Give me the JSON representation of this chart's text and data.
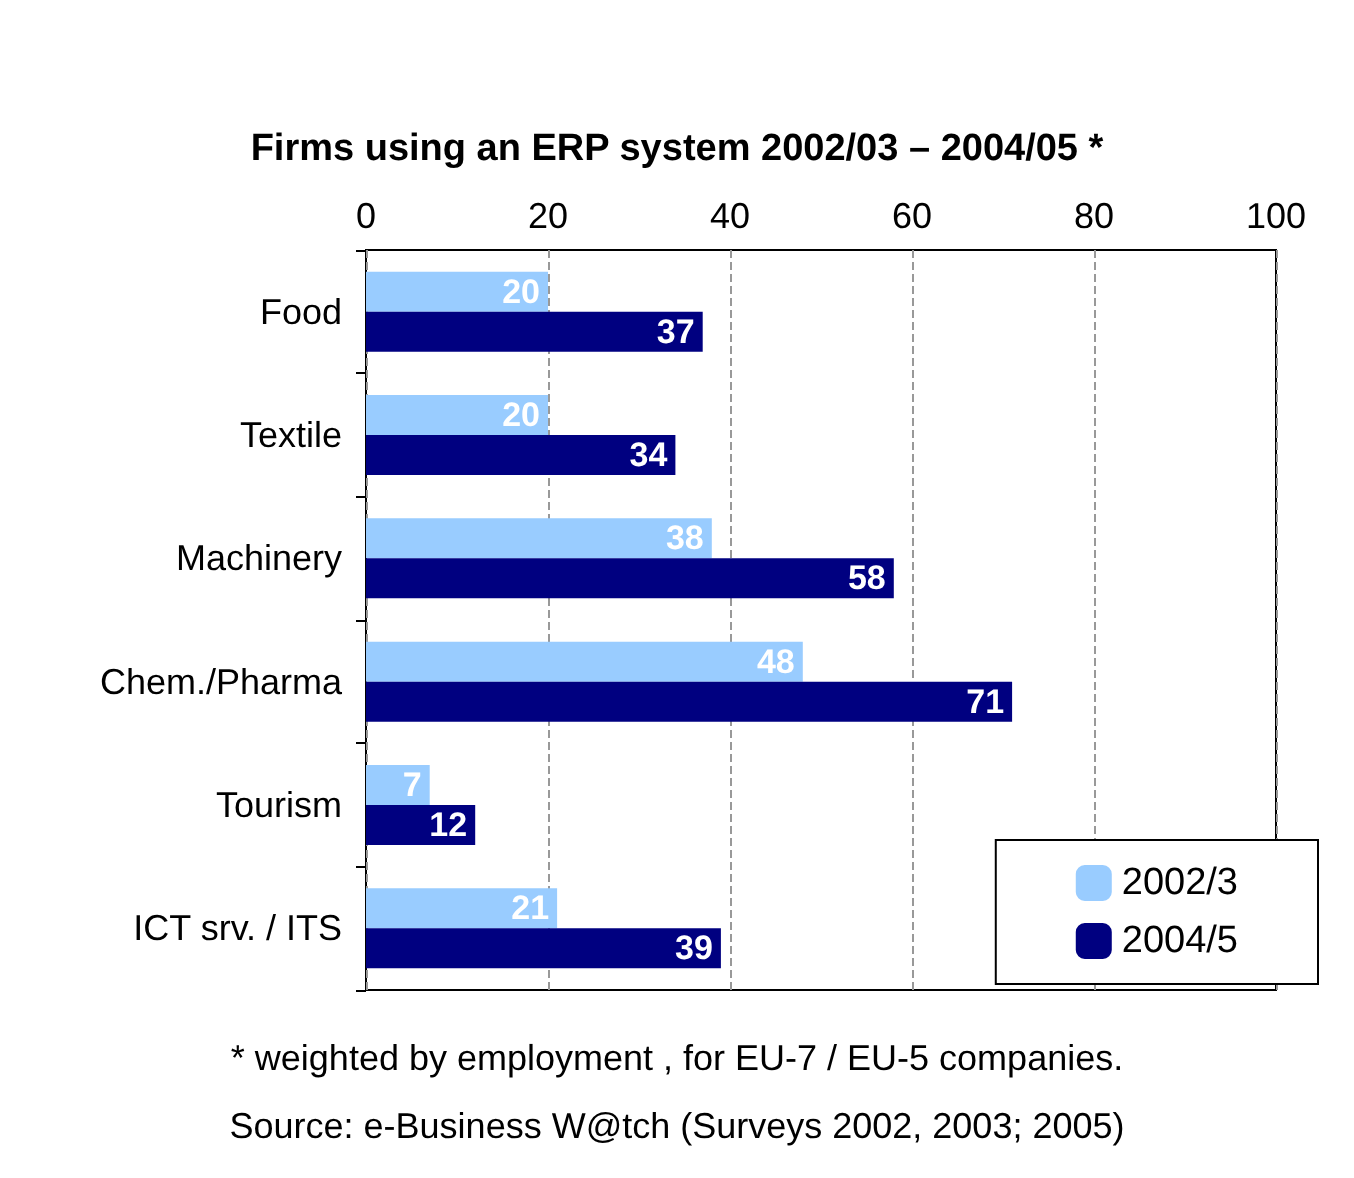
{
  "chart_data": {
    "type": "bar",
    "orientation": "horizontal",
    "title": "Firms using an ERP system 2002/03 – 2004/05 *",
    "categories": [
      "Food",
      "Textile",
      "Machinery",
      "Chem./Pharma",
      "Tourism",
      "ICT srv. / ITS"
    ],
    "series": [
      {
        "name": "2002/3",
        "color": "#99ccff",
        "values": [
          20,
          20,
          38,
          48,
          7,
          21
        ]
      },
      {
        "name": "2004/5",
        "color": "#000080",
        "values": [
          37,
          34,
          58,
          71,
          12,
          39
        ]
      }
    ],
    "xlim": [
      0,
      100
    ],
    "xticks": [
      0,
      20,
      40,
      60,
      80,
      100
    ],
    "grid": "x",
    "legend": "bottom right",
    "data_labels": true,
    "annotations": [
      "* weighted by employment , for EU-7 / EU-5 companies.",
      "Source: e-Business W@tch (Surveys 2002, 2003; 2005)"
    ]
  }
}
